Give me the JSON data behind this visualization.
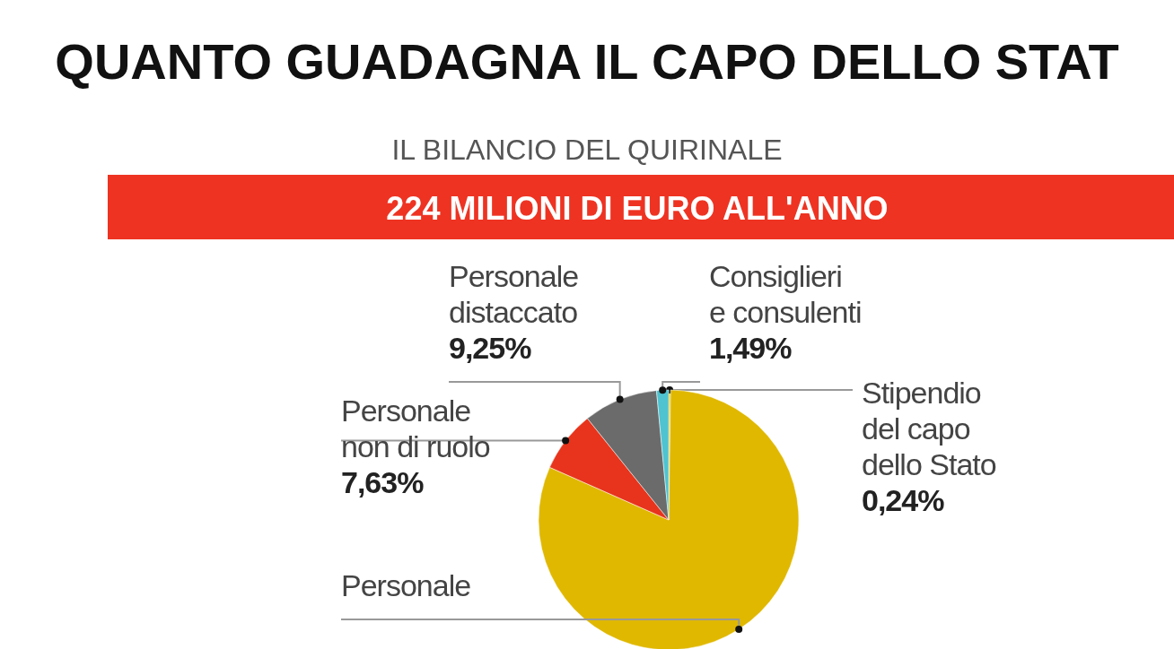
{
  "chart_data": {
    "type": "pie",
    "title": "QUANTO GUADAGNA IL CAPO DELLO STAT",
    "subtitle": "IL BILANCIO DEL QUIRINALE",
    "annotations": [
      "224 MILIONI DI EURO ALL'ANNO"
    ],
    "categories": [
      "Stipendio del capo dello Stato",
      "Personale",
      "Personale non di ruolo",
      "Personale distaccato",
      "Consiglieri e consulenti"
    ],
    "values": [
      0.24,
      81.39,
      7.63,
      9.25,
      1.49
    ],
    "value_labels": [
      "0,24%",
      null,
      "7,63%",
      "9,25%",
      "1,49%"
    ],
    "colors": [
      "#e8c200",
      "#e0b800",
      "#e8341c",
      "#6b6b6b",
      "#4fc3d0"
    ]
  }
}
